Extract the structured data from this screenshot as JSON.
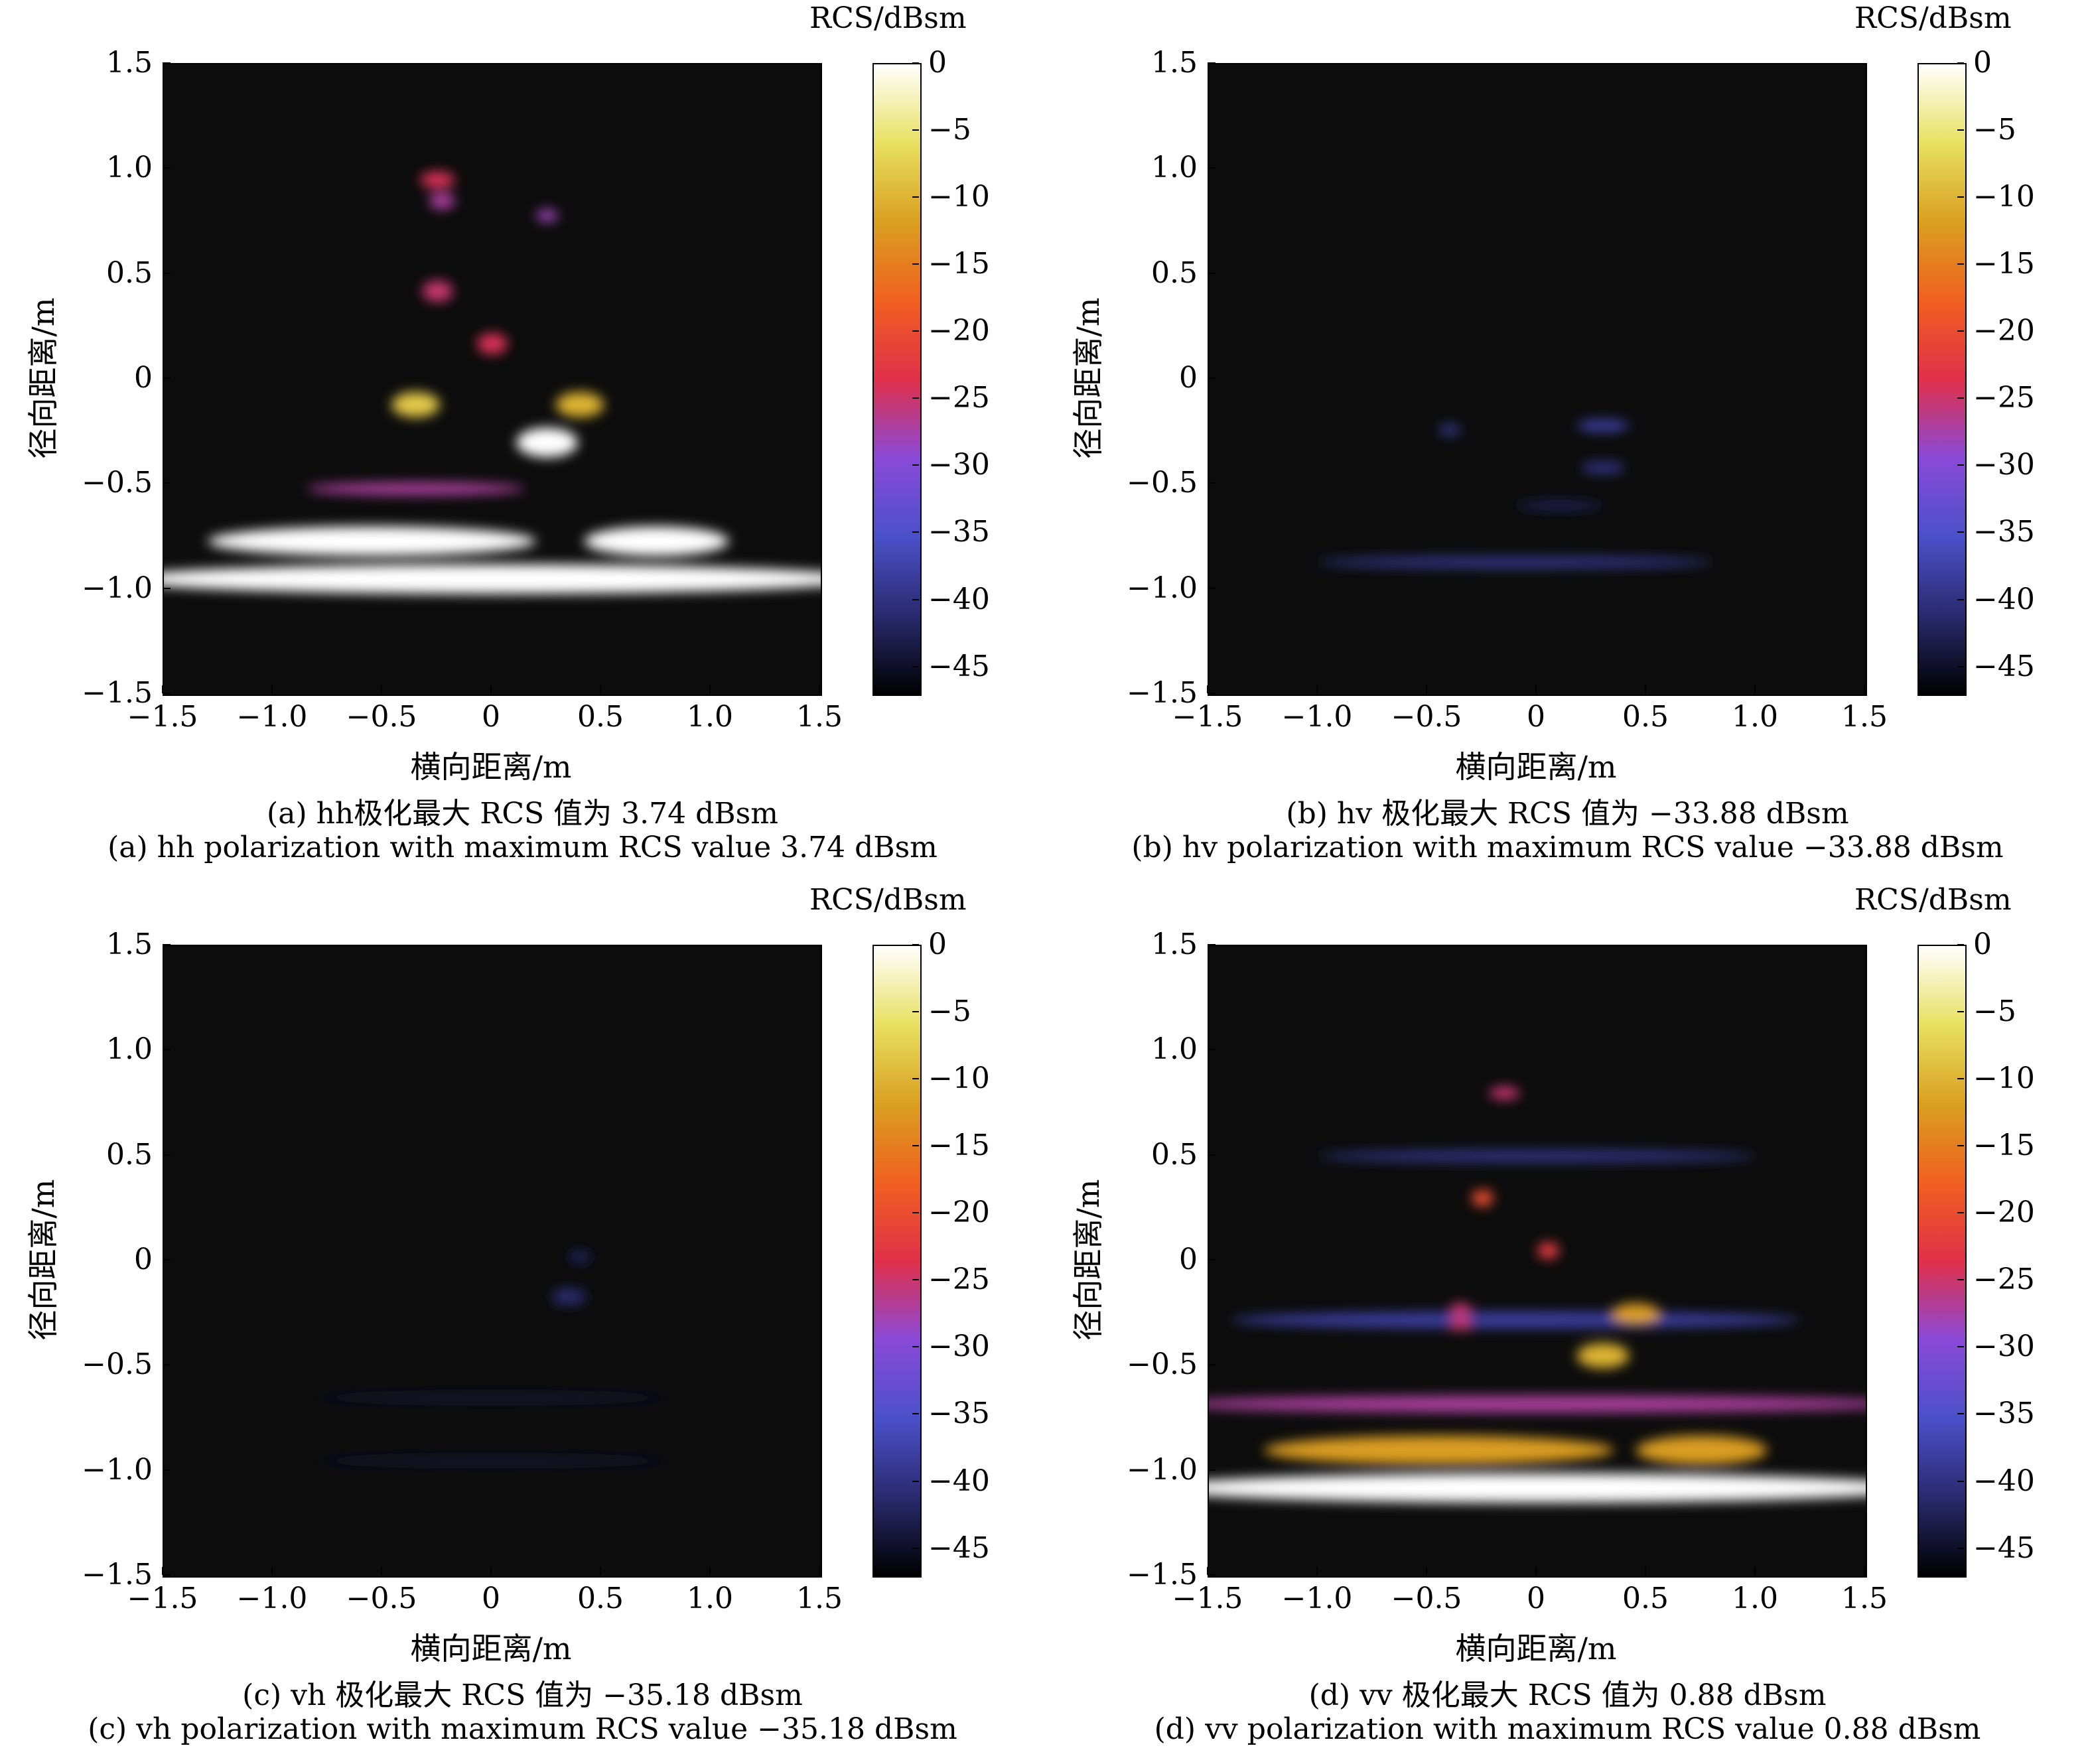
{
  "colorbar": {
    "unit_label": "RCS/dBsm",
    "ticks": [
      "0",
      "−5",
      "−10",
      "−15",
      "−20",
      "−25",
      "−30",
      "−35",
      "−40",
      "−45"
    ],
    "tick_values": [
      0,
      -5,
      -10,
      -15,
      -20,
      -25,
      -30,
      -35,
      -40,
      -45
    ],
    "range": [
      -47,
      0
    ],
    "colormap": [
      "#000000",
      "#2a2a6e",
      "#4a50c8",
      "#8a4ad8",
      "#e0304a",
      "#f06020",
      "#d9a020",
      "#e8e060",
      "#ffffff"
    ]
  },
  "axes": {
    "xlabel": "横向距离/m",
    "ylabel": "径向距离/m",
    "xticks": [
      "−1.5",
      "−1.0",
      "−0.5",
      "0",
      "0.5",
      "1.0",
      "1.5"
    ],
    "yticks": [
      "1.5",
      "1.0",
      "0.5",
      "0",
      "−0.5",
      "−1.0",
      "−1.5"
    ],
    "xlim": [
      -1.5,
      1.5
    ],
    "ylim": [
      -1.5,
      1.5
    ]
  },
  "chart_data": [
    {
      "type": "heatmap",
      "id": "hh",
      "caption_cn": "(a) hh极化最大 RCS 值为 3.74 dBsm",
      "caption_en": "(a) hh polarization with maximum RCS value 3.74 dBsm",
      "max_rcs_dbsm": 3.74,
      "peaks": [
        {
          "x": -0.55,
          "y": -0.77,
          "w": 0.75,
          "h": 0.07,
          "v": 3
        },
        {
          "x": 0.75,
          "y": -0.77,
          "w": 0.33,
          "h": 0.07,
          "v": 2
        },
        {
          "x": 0.0,
          "y": -0.95,
          "w": 1.7,
          "h": 0.07,
          "v": 3.74
        },
        {
          "x": 0.25,
          "y": -0.3,
          "w": 0.14,
          "h": 0.07,
          "v": 3
        },
        {
          "x": -0.35,
          "y": -0.12,
          "w": 0.11,
          "h": 0.06,
          "v": -8
        },
        {
          "x": 0.4,
          "y": -0.12,
          "w": 0.11,
          "h": 0.06,
          "v": -10
        },
        {
          "x": 0.0,
          "y": 0.17,
          "w": 0.07,
          "h": 0.05,
          "v": -24
        },
        {
          "x": -0.25,
          "y": 0.42,
          "w": 0.07,
          "h": 0.05,
          "v": -25
        },
        {
          "x": -0.25,
          "y": 0.95,
          "w": 0.08,
          "h": 0.04,
          "v": -24
        },
        {
          "x": -0.23,
          "y": 0.85,
          "w": 0.06,
          "h": 0.04,
          "v": -27
        },
        {
          "x": 0.25,
          "y": 0.78,
          "w": 0.05,
          "h": 0.03,
          "v": -28
        },
        {
          "x": -0.35,
          "y": -0.52,
          "w": 0.5,
          "h": 0.03,
          "v": -27
        }
      ]
    },
    {
      "type": "heatmap",
      "id": "hv",
      "caption_cn": "(b) hv 极化最大 RCS 值为 −33.88 dBsm",
      "caption_en": "(b) hv polarization with maximum RCS value −33.88 dBsm",
      "max_rcs_dbsm": -33.88,
      "peaks": [
        {
          "x": 0.3,
          "y": -0.22,
          "w": 0.12,
          "h": 0.03,
          "v": -38
        },
        {
          "x": -0.4,
          "y": -0.24,
          "w": 0.05,
          "h": 0.03,
          "v": -40
        },
        {
          "x": 0.3,
          "y": -0.42,
          "w": 0.1,
          "h": 0.03,
          "v": -40
        },
        {
          "x": 0.1,
          "y": -0.6,
          "w": 0.2,
          "h": 0.02,
          "v": -42
        },
        {
          "x": -0.1,
          "y": -0.87,
          "w": 0.9,
          "h": 0.03,
          "v": -40
        }
      ]
    },
    {
      "type": "heatmap",
      "id": "vh",
      "caption_cn": "(c) vh 极化最大 RCS 值为 −35.18 dBsm",
      "caption_en": "(c) vh polarization with maximum RCS value −35.18 dBsm",
      "max_rcs_dbsm": -35.18,
      "peaks": [
        {
          "x": 0.4,
          "y": 0.02,
          "w": 0.05,
          "h": 0.03,
          "v": -42
        },
        {
          "x": 0.35,
          "y": -0.17,
          "w": 0.08,
          "h": 0.04,
          "v": -41
        },
        {
          "x": 0.0,
          "y": -0.65,
          "w": 0.8,
          "h": 0.02,
          "v": -44
        },
        {
          "x": 0.0,
          "y": -0.95,
          "w": 0.8,
          "h": 0.02,
          "v": -44
        }
      ]
    },
    {
      "type": "heatmap",
      "id": "vv",
      "caption_cn": "(d) vv 极化最大 RCS 值为 0.88 dBsm",
      "caption_en": "(d) vv polarization with maximum RCS value 0.88 dBsm",
      "max_rcs_dbsm": 0.88,
      "peaks": [
        {
          "x": 0.0,
          "y": -1.08,
          "w": 1.75,
          "h": 0.07,
          "v": 0.88
        },
        {
          "x": -0.45,
          "y": -0.9,
          "w": 0.8,
          "h": 0.07,
          "v": -12
        },
        {
          "x": 0.75,
          "y": -0.9,
          "w": 0.3,
          "h": 0.07,
          "v": -12
        },
        {
          "x": 0.0,
          "y": -0.68,
          "w": 1.7,
          "h": 0.04,
          "v": -27
        },
        {
          "x": 0.3,
          "y": -0.45,
          "w": 0.12,
          "h": 0.06,
          "v": -10
        },
        {
          "x": 0.45,
          "y": -0.25,
          "w": 0.11,
          "h": 0.05,
          "v": -12
        },
        {
          "x": -0.35,
          "y": -0.23,
          "w": 0.05,
          "h": 0.03,
          "v": -25
        },
        {
          "x": -0.35,
          "y": -0.3,
          "w": 0.05,
          "h": 0.03,
          "v": -25
        },
        {
          "x": 0.05,
          "y": 0.05,
          "w": 0.05,
          "h": 0.04,
          "v": -22
        },
        {
          "x": -0.25,
          "y": 0.3,
          "w": 0.05,
          "h": 0.04,
          "v": -20
        },
        {
          "x": -0.15,
          "y": 0.8,
          "w": 0.07,
          "h": 0.03,
          "v": -25
        },
        {
          "x": -0.1,
          "y": -0.28,
          "w": 1.3,
          "h": 0.04,
          "v": -38
        },
        {
          "x": 0.0,
          "y": 0.5,
          "w": 1.0,
          "h": 0.03,
          "v": -40
        }
      ]
    }
  ]
}
